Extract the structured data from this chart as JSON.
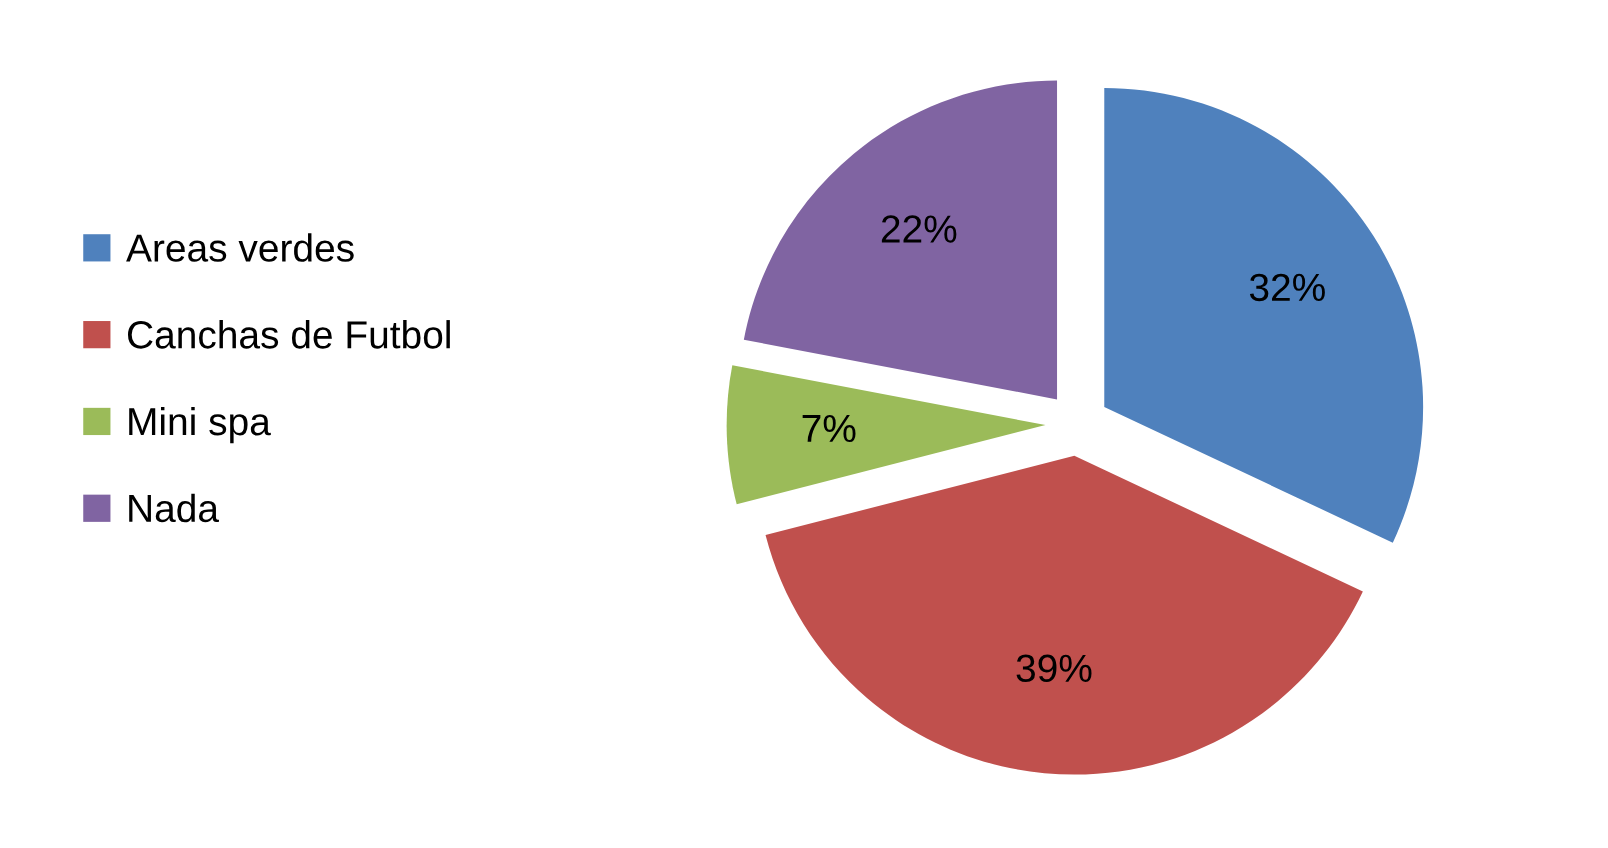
{
  "chart_data": {
    "type": "pie",
    "categories": [
      "Areas verdes",
      "Canchas de Futbol",
      "Mini spa",
      "Nada"
    ],
    "values": [
      32,
      39,
      7,
      22
    ],
    "colors": [
      "#4f81bd",
      "#c0504d",
      "#9bbb59",
      "#8064a2"
    ],
    "value_labels": [
      "32%",
      "39%",
      "7%",
      "22%"
    ],
    "legend": "left"
  }
}
